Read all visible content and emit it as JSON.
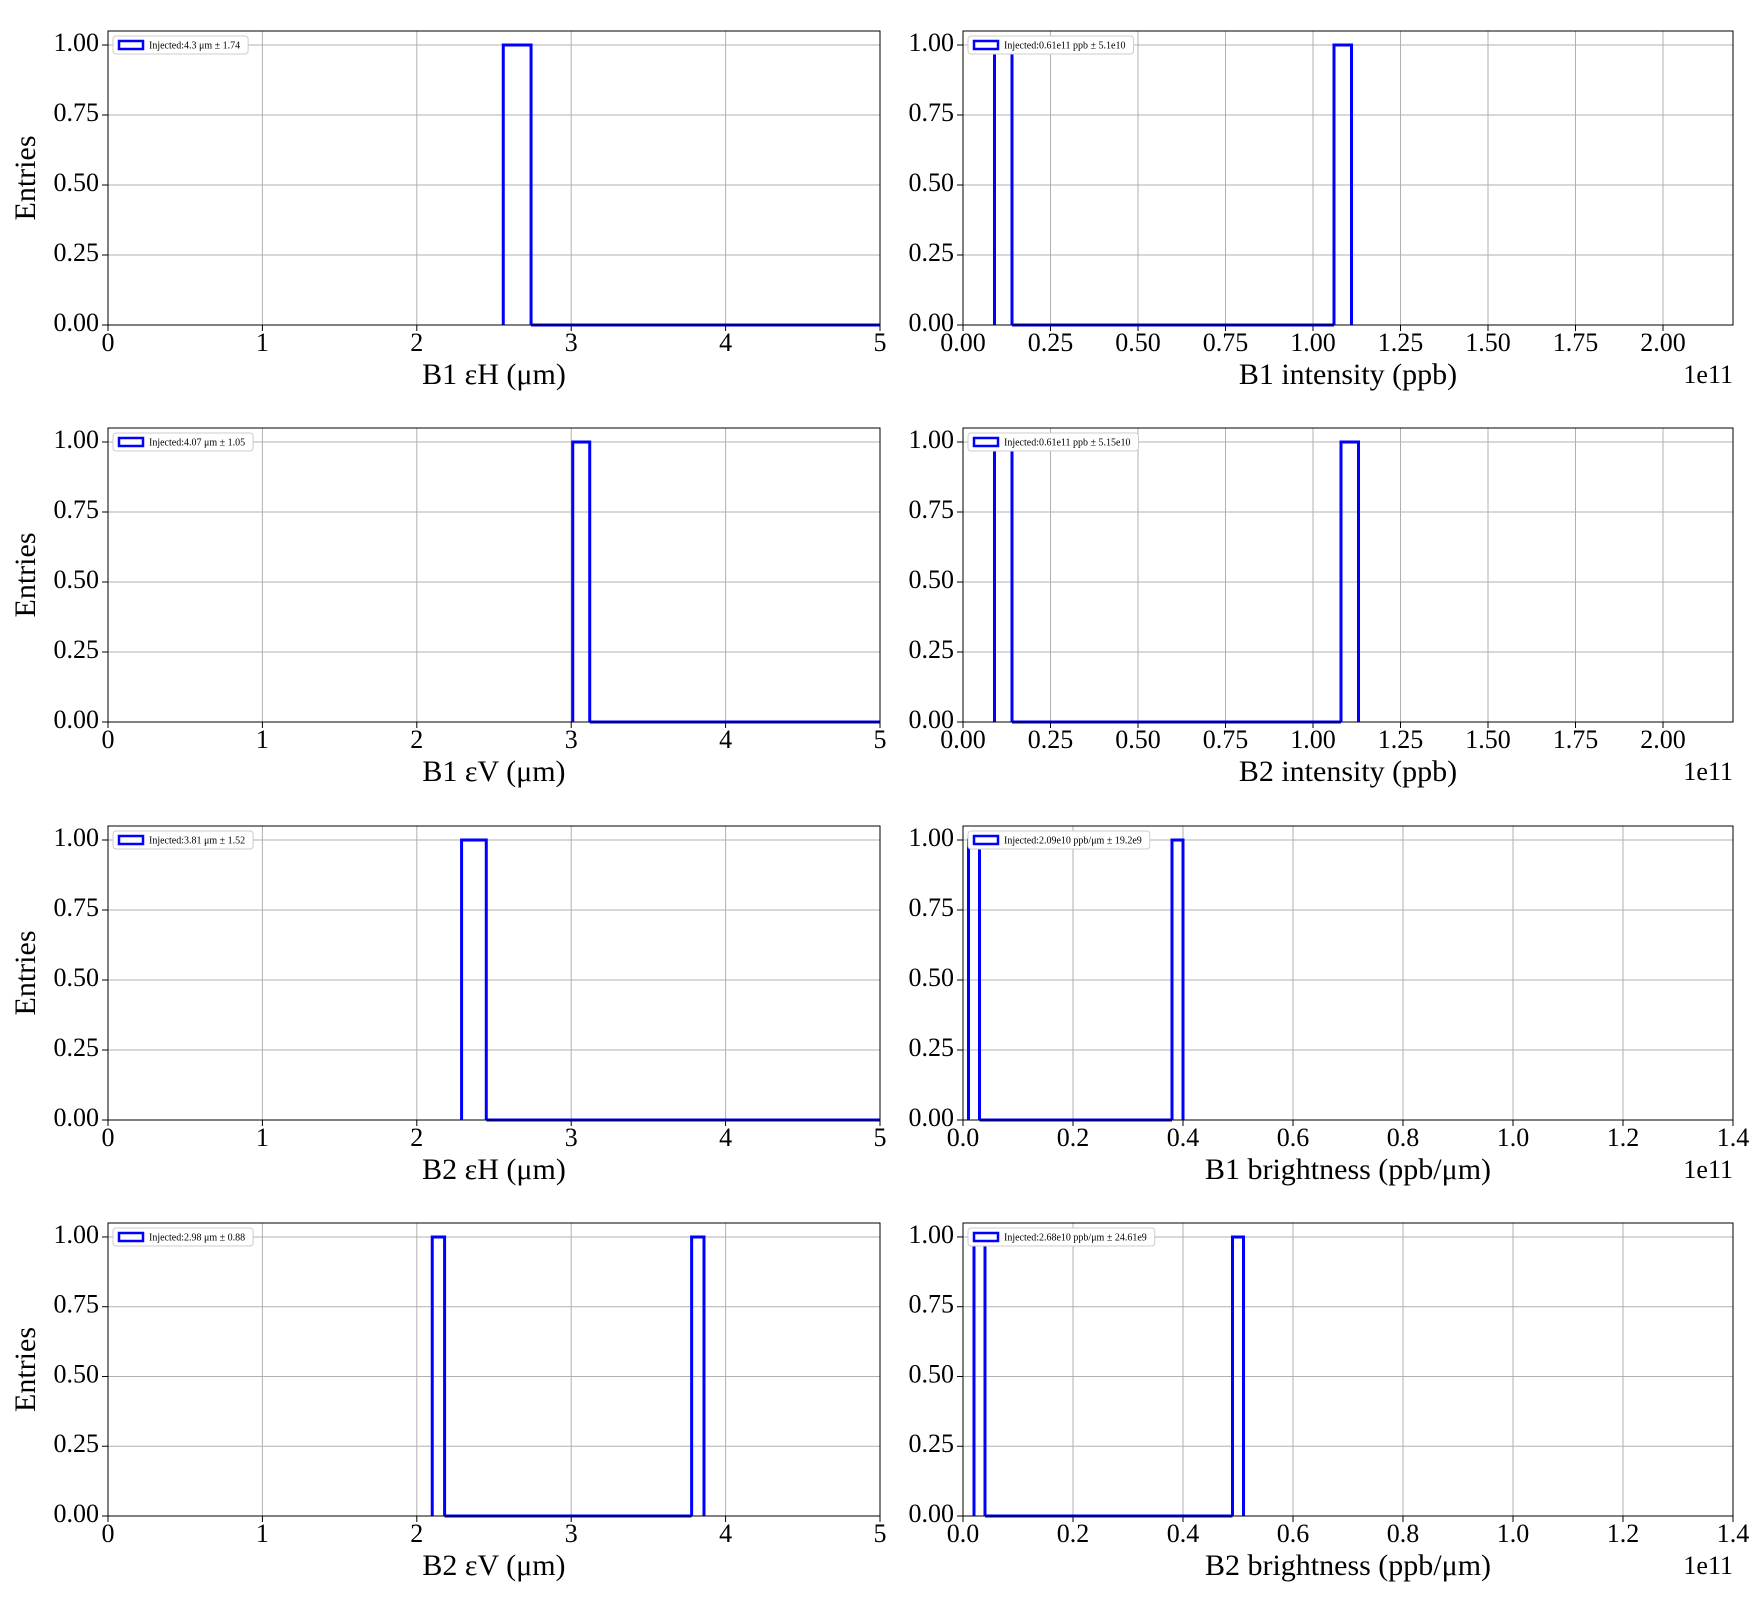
{
  "chart_data": [
    {
      "type": "histogram",
      "ylabel": "Entries",
      "xlabel": "B1 εH (μm)",
      "legend": "Injected:4.3 μm ± 1.74",
      "color": "#0000ff",
      "grid": true,
      "bins": [
        2.56,
        2.74,
        5
      ],
      "counts": [
        1,
        0
      ],
      "xlim": [
        0,
        5
      ],
      "xticks": [
        0,
        1,
        2,
        3,
        4,
        5
      ],
      "ylim": [
        0,
        1.05
      ],
      "yticks": [
        {
          "value": 0,
          "label": "0.00"
        },
        0.25,
        {
          "value": 0.5,
          "label": "0.50"
        },
        0.75,
        {
          "value": 1,
          "label": "1.00"
        }
      ]
    },
    {
      "type": "histogram",
      "xlabel": "B1 intensity (ppb)",
      "legend": "Injected:0.61e11 ppb ± 5.1e10",
      "offset_text": "1e11",
      "color": "#0000ff",
      "grid": true,
      "bins": [
        0.09,
        0.14,
        1.06,
        1.11
      ],
      "counts": [
        1,
        0,
        1
      ],
      "xlim": [
        0,
        2.2
      ],
      "xticks": [
        {
          "value": 0,
          "label": "0.00"
        },
        0.25,
        {
          "value": 0.5,
          "label": "0.50"
        },
        0.75,
        {
          "value": 1,
          "label": "1.00"
        },
        1.25,
        {
          "value": 1.5,
          "label": "1.50"
        },
        1.75,
        {
          "value": 2,
          "label": "2.00"
        }
      ],
      "ylim": [
        0,
        1.05
      ],
      "yticks": [
        {
          "value": 0,
          "label": "0.00"
        },
        0.25,
        {
          "value": 0.5,
          "label": "0.50"
        },
        0.75,
        {
          "value": 1,
          "label": "1.00"
        }
      ]
    },
    {
      "type": "histogram",
      "ylabel": "Entries",
      "xlabel": "B1 εV (μm)",
      "legend": "Injected:4.07 μm ± 1.05",
      "color": "#0000ff",
      "grid": true,
      "bins": [
        3.01,
        3.12,
        5
      ],
      "counts": [
        1,
        0
      ],
      "xlim": [
        0,
        5
      ],
      "xticks": [
        0,
        1,
        2,
        3,
        4,
        5
      ],
      "ylim": [
        0,
        1.05
      ],
      "yticks": [
        {
          "value": 0,
          "label": "0.00"
        },
        0.25,
        {
          "value": 0.5,
          "label": "0.50"
        },
        0.75,
        {
          "value": 1,
          "label": "1.00"
        }
      ]
    },
    {
      "type": "histogram",
      "xlabel": "B2 intensity (ppb)",
      "legend": "Injected:0.61e11 ppb ± 5.15e10",
      "offset_text": "1e11",
      "color": "#0000ff",
      "grid": true,
      "bins": [
        0.09,
        0.14,
        1.08,
        1.13
      ],
      "counts": [
        1,
        0,
        1
      ],
      "xlim": [
        0,
        2.2
      ],
      "xticks": [
        {
          "value": 0,
          "label": "0.00"
        },
        0.25,
        {
          "value": 0.5,
          "label": "0.50"
        },
        0.75,
        {
          "value": 1,
          "label": "1.00"
        },
        1.25,
        {
          "value": 1.5,
          "label": "1.50"
        },
        1.75,
        {
          "value": 2,
          "label": "2.00"
        }
      ],
      "ylim": [
        0,
        1.05
      ],
      "yticks": [
        {
          "value": 0,
          "label": "0.00"
        },
        0.25,
        {
          "value": 0.5,
          "label": "0.50"
        },
        0.75,
        {
          "value": 1,
          "label": "1.00"
        }
      ]
    },
    {
      "type": "histogram",
      "ylabel": "Entries",
      "xlabel": "B2 εH (μm)",
      "legend": "Injected:3.81 μm ± 1.52",
      "color": "#0000ff",
      "grid": true,
      "bins": [
        2.29,
        2.45,
        5
      ],
      "counts": [
        1,
        0
      ],
      "xlim": [
        0,
        5
      ],
      "xticks": [
        0,
        1,
        2,
        3,
        4,
        5
      ],
      "ylim": [
        0,
        1.05
      ],
      "yticks": [
        {
          "value": 0,
          "label": "0.00"
        },
        0.25,
        {
          "value": 0.5,
          "label": "0.50"
        },
        0.75,
        {
          "value": 1,
          "label": "1.00"
        }
      ]
    },
    {
      "type": "histogram",
      "xlabel": "B1 brightness (ppb/μm)",
      "legend": "Injected:2.09e10 ppb/μm ± 19.2e9",
      "offset_text": "1e11",
      "color": "#0000ff",
      "grid": true,
      "bins": [
        0.01,
        0.03,
        0.38,
        0.4
      ],
      "counts": [
        1,
        0,
        1
      ],
      "xlim": [
        0,
        1.4
      ],
      "xticks": [
        {
          "value": 0,
          "label": "0.0"
        },
        0.2,
        0.4,
        0.6,
        0.8,
        {
          "value": 1,
          "label": "1.0"
        },
        1.2,
        1.4
      ],
      "ylim": [
        0,
        1.05
      ],
      "yticks": [
        {
          "value": 0,
          "label": "0.00"
        },
        0.25,
        {
          "value": 0.5,
          "label": "0.50"
        },
        0.75,
        {
          "value": 1,
          "label": "1.00"
        }
      ]
    },
    {
      "type": "histogram",
      "ylabel": "Entries",
      "xlabel": "B2 εV (μm)",
      "legend": "Injected:2.98 μm ± 0.88",
      "color": "#0000ff",
      "grid": true,
      "bins": [
        2.1,
        2.18,
        3.78,
        3.86
      ],
      "counts": [
        1,
        0,
        1
      ],
      "xlim": [
        0,
        5
      ],
      "xticks": [
        0,
        1,
        2,
        3,
        4,
        5
      ],
      "ylim": [
        0,
        1.05
      ],
      "yticks": [
        {
          "value": 0,
          "label": "0.00"
        },
        0.25,
        {
          "value": 0.5,
          "label": "0.50"
        },
        0.75,
        {
          "value": 1,
          "label": "1.00"
        }
      ]
    },
    {
      "type": "histogram",
      "xlabel": "B2 brightness (ppb/μm)",
      "legend": "Injected:2.68e10 ppb/μm ± 24.61e9",
      "offset_text": "1e11",
      "color": "#0000ff",
      "grid": true,
      "bins": [
        0.02,
        0.04,
        0.49,
        0.51
      ],
      "counts": [
        1,
        0,
        1
      ],
      "xlim": [
        0,
        1.4
      ],
      "xticks": [
        {
          "value": 0,
          "label": "0.0"
        },
        0.2,
        0.4,
        0.6,
        0.8,
        {
          "value": 1,
          "label": "1.0"
        },
        1.2,
        1.4
      ],
      "ylim": [
        0,
        1.05
      ],
      "yticks": [
        {
          "value": 0,
          "label": "0.00"
        },
        0.25,
        {
          "value": 0.5,
          "label": "0.50"
        },
        0.75,
        {
          "value": 1,
          "label": "1.00"
        }
      ]
    }
  ]
}
